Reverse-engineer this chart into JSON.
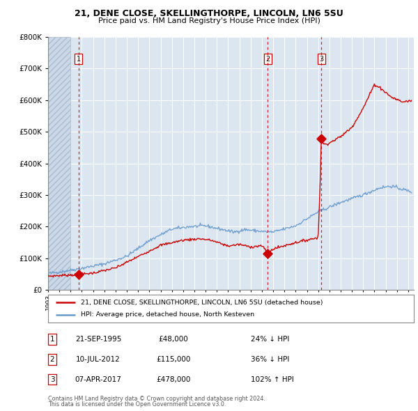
{
  "title1": "21, DENE CLOSE, SKELLINGTHORPE, LINCOLN, LN6 5SU",
  "title2": "Price paid vs. HM Land Registry's House Price Index (HPI)",
  "legend_line1": "21, DENE CLOSE, SKELLINGTHORPE, LINCOLN, LN6 5SU (detached house)",
  "legend_line2": "HPI: Average price, detached house, North Kesteven",
  "table": [
    {
      "num": "1",
      "date": "21-SEP-1995",
      "price": "£48,000",
      "hpi": "24% ↓ HPI"
    },
    {
      "num": "2",
      "date": "10-JUL-2012",
      "price": "£115,000",
      "hpi": "36% ↓ HPI"
    },
    {
      "num": "3",
      "date": "07-APR-2017",
      "price": "£478,000",
      "hpi": "102% ↑ HPI"
    }
  ],
  "footer1": "Contains HM Land Registry data © Crown copyright and database right 2024.",
  "footer2": "This data is licensed under the Open Government Licence v3.0.",
  "price_color": "#cc0000",
  "hpi_color": "#6699cc",
  "plot_bg_color": "#dce6f1",
  "vline_color": "#cc0000",
  "sale_years": [
    1995.72,
    2012.52,
    2017.27
  ],
  "sale_prices": [
    48000,
    115000,
    478000
  ],
  "ylim": [
    0,
    800000
  ],
  "xlim_start": 1993.0,
  "xlim_end": 2025.5,
  "num_labels": [
    "1",
    "2",
    "3"
  ]
}
